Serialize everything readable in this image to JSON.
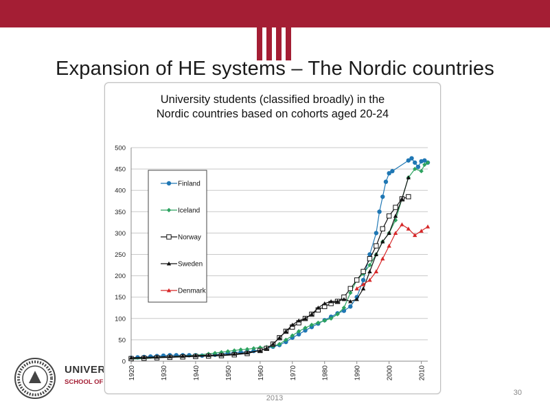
{
  "slide": {
    "title": "Expansion of HE systems – The Nordic countries",
    "footer_year": "2013",
    "page_number": "30",
    "brand_color": "#a41e34",
    "logo_icon": "university-seal-icon",
    "header_icon": "pillars-icon"
  },
  "university": {
    "name": "UNIVERSITY OF ICELAND",
    "school": "SCHOOL OF EDUCATION",
    "seal_text": "UNIVERSITAS ISLANDIAE SIGILLUM"
  },
  "chart_data": {
    "type": "line",
    "title_line1": "University students (classified broadly) in the",
    "title_line2": "Nordic countries based on cohorts aged 20-24",
    "xlabel": "",
    "ylabel": "",
    "xlim": [
      1920,
      2012
    ],
    "ylim": [
      0,
      500
    ],
    "y_ticks": [
      0,
      50,
      100,
      150,
      200,
      250,
      300,
      350,
      400,
      450,
      500
    ],
    "x_ticks": [
      1920,
      1930,
      1940,
      1950,
      1960,
      1970,
      1980,
      1990,
      2000,
      2010
    ],
    "x_tick_labels": [
      "1920",
      "1930",
      "1940",
      "1950",
      "1960",
      "1970",
      "1980",
      "1990",
      "2000",
      "2010"
    ],
    "grid": true,
    "legend_position": "top-left",
    "series": [
      {
        "name": "Finland",
        "color": "#1f77b4",
        "marker": "circle",
        "points": [
          [
            1920,
            8
          ],
          [
            1922,
            9
          ],
          [
            1924,
            10
          ],
          [
            1926,
            11
          ],
          [
            1928,
            12
          ],
          [
            1930,
            13
          ],
          [
            1932,
            14
          ],
          [
            1934,
            14
          ],
          [
            1936,
            14
          ],
          [
            1938,
            14
          ],
          [
            1940,
            14
          ],
          [
            1942,
            13
          ],
          [
            1944,
            13
          ],
          [
            1946,
            15
          ],
          [
            1948,
            17
          ],
          [
            1950,
            19
          ],
          [
            1952,
            20
          ],
          [
            1954,
            21
          ],
          [
            1956,
            22
          ],
          [
            1958,
            24
          ],
          [
            1960,
            26
          ],
          [
            1962,
            30
          ],
          [
            1964,
            34
          ],
          [
            1966,
            38
          ],
          [
            1968,
            45
          ],
          [
            1970,
            55
          ],
          [
            1972,
            63
          ],
          [
            1974,
            72
          ],
          [
            1976,
            80
          ],
          [
            1978,
            88
          ],
          [
            1980,
            96
          ],
          [
            1982,
            104
          ],
          [
            1984,
            112
          ],
          [
            1986,
            118
          ],
          [
            1988,
            128
          ],
          [
            1990,
            150
          ],
          [
            1992,
            190
          ],
          [
            1994,
            250
          ],
          [
            1996,
            300
          ],
          [
            1997,
            350
          ],
          [
            1998,
            385
          ],
          [
            1999,
            420
          ],
          [
            2000,
            440
          ],
          [
            2001,
            445
          ],
          [
            2006,
            470
          ],
          [
            2007,
            475
          ],
          [
            2008,
            465
          ],
          [
            2009,
            455
          ],
          [
            2010,
            468
          ],
          [
            2011,
            470
          ],
          [
            2012,
            465
          ]
        ]
      },
      {
        "name": "Iceland",
        "color": "#2ca25f",
        "marker": "diamond",
        "points": [
          [
            1920,
            5
          ],
          [
            1924,
            6
          ],
          [
            1928,
            8
          ],
          [
            1932,
            10
          ],
          [
            1936,
            12
          ],
          [
            1940,
            14
          ],
          [
            1944,
            17
          ],
          [
            1946,
            19
          ],
          [
            1948,
            21
          ],
          [
            1950,
            23
          ],
          [
            1952,
            25
          ],
          [
            1954,
            27
          ],
          [
            1956,
            28
          ],
          [
            1958,
            30
          ],
          [
            1960,
            32
          ],
          [
            1962,
            33
          ],
          [
            1964,
            35
          ],
          [
            1966,
            40
          ],
          [
            1968,
            50
          ],
          [
            1970,
            60
          ],
          [
            1972,
            70
          ],
          [
            1974,
            78
          ],
          [
            1976,
            85
          ],
          [
            1978,
            90
          ],
          [
            1980,
            95
          ],
          [
            1982,
            100
          ],
          [
            1984,
            110
          ],
          [
            1986,
            125
          ],
          [
            1988,
            160
          ],
          [
            1990,
            190
          ],
          [
            1992,
            205
          ],
          [
            1994,
            225
          ],
          [
            1996,
            250
          ],
          [
            1998,
            280
          ],
          [
            2000,
            300
          ],
          [
            2002,
            330
          ],
          [
            2004,
            380
          ],
          [
            2006,
            430
          ],
          [
            2008,
            450
          ],
          [
            2010,
            445
          ],
          [
            2011,
            460
          ],
          [
            2012,
            465
          ]
        ]
      },
      {
        "name": "Norway",
        "color": "#111111",
        "marker": "square-open",
        "points": [
          [
            1920,
            6
          ],
          [
            1924,
            7
          ],
          [
            1928,
            8
          ],
          [
            1932,
            9
          ],
          [
            1936,
            10
          ],
          [
            1940,
            11
          ],
          [
            1944,
            12
          ],
          [
            1948,
            13
          ],
          [
            1952,
            15
          ],
          [
            1956,
            18
          ],
          [
            1960,
            25
          ],
          [
            1962,
            30
          ],
          [
            1964,
            40
          ],
          [
            1966,
            55
          ],
          [
            1968,
            70
          ],
          [
            1970,
            80
          ],
          [
            1972,
            90
          ],
          [
            1974,
            100
          ],
          [
            1976,
            110
          ],
          [
            1978,
            120
          ],
          [
            1980,
            128
          ],
          [
            1982,
            135
          ],
          [
            1984,
            140
          ],
          [
            1986,
            150
          ],
          [
            1988,
            170
          ],
          [
            1990,
            190
          ],
          [
            1992,
            210
          ],
          [
            1994,
            240
          ],
          [
            1996,
            270
          ],
          [
            1998,
            310
          ],
          [
            2000,
            340
          ],
          [
            2002,
            360
          ],
          [
            2004,
            380
          ],
          [
            2006,
            385
          ]
        ]
      },
      {
        "name": "Sweden",
        "color": "#111111",
        "marker": "triangle",
        "points": [
          [
            1920,
            8
          ],
          [
            1924,
            9
          ],
          [
            1928,
            10
          ],
          [
            1932,
            11
          ],
          [
            1936,
            12
          ],
          [
            1940,
            13
          ],
          [
            1944,
            14
          ],
          [
            1948,
            15
          ],
          [
            1952,
            17
          ],
          [
            1956,
            20
          ],
          [
            1960,
            25
          ],
          [
            1962,
            30
          ],
          [
            1964,
            40
          ],
          [
            1966,
            55
          ],
          [
            1968,
            70
          ],
          [
            1970,
            85
          ],
          [
            1972,
            95
          ],
          [
            1974,
            100
          ],
          [
            1976,
            110
          ],
          [
            1978,
            125
          ],
          [
            1980,
            135
          ],
          [
            1982,
            140
          ],
          [
            1984,
            140
          ],
          [
            1986,
            145
          ],
          [
            1988,
            140
          ],
          [
            1990,
            145
          ],
          [
            1992,
            170
          ],
          [
            1994,
            210
          ],
          [
            1996,
            250
          ],
          [
            1998,
            280
          ],
          [
            2000,
            300
          ],
          [
            2002,
            340
          ],
          [
            2004,
            380
          ],
          [
            2006,
            430
          ]
        ]
      },
      {
        "name": "Denmark",
        "color": "#d62728",
        "marker": "triangle",
        "points": [
          [
            1990,
            170
          ],
          [
            1992,
            180
          ],
          [
            1994,
            190
          ],
          [
            1996,
            210
          ],
          [
            1998,
            240
          ],
          [
            2000,
            270
          ],
          [
            2002,
            300
          ],
          [
            2004,
            320
          ],
          [
            2006,
            310
          ],
          [
            2008,
            295
          ],
          [
            2010,
            305
          ],
          [
            2012,
            315
          ]
        ]
      }
    ]
  }
}
